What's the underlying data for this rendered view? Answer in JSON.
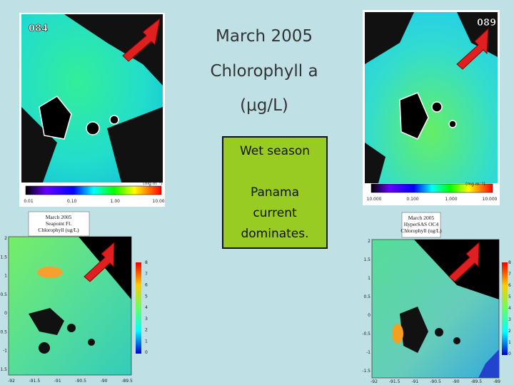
{
  "title": {
    "line1": "March 2005",
    "line2": "Chlorophyll a",
    "line3": "(μg/L)"
  },
  "box": {
    "heading": "Wet season",
    "line1": "Panama",
    "line2": "current",
    "line3": "dominates."
  },
  "top_left": {
    "label": "084",
    "unit": "(mg m⁻³)",
    "ticks": [
      "0.01",
      "0.10",
      "1.00",
      "10.00"
    ]
  },
  "top_right": {
    "label": "089",
    "unit": "(mg m⁻³)",
    "ticks": [
      "10.000",
      "0.100",
      "1.000",
      "10.000"
    ]
  },
  "bottom_left": {
    "legend": [
      "March 2005",
      "Seapoint Fl.",
      "Chlorophyll (ug/L)"
    ],
    "yticks": [
      "2",
      "1.5",
      "1",
      "0.5",
      "0",
      "-0.5",
      "-1",
      "-1.5"
    ],
    "xticks": [
      "-92",
      "-91.5",
      "-91",
      "-90.5",
      "-90",
      "-89.5"
    ],
    "cticks": [
      "8",
      "7",
      "6",
      "5",
      "4",
      "3",
      "2",
      "1",
      "0"
    ]
  },
  "bottom_right": {
    "legend": [
      "March 2005",
      "HyperSAS OC4",
      "Chlorophyll (ug/L)"
    ],
    "yticks": [
      "2",
      "1.5",
      "1",
      "0.5",
      "0",
      "-0.5",
      "-1",
      "-1.5"
    ],
    "xticks": [
      "-92",
      "-91.5",
      "-91",
      "-90.5",
      "-90",
      "-89.5",
      "-89"
    ],
    "cticks": [
      "8",
      "7",
      "6",
      "5",
      "4",
      "3",
      "2",
      "1",
      "0"
    ]
  }
}
